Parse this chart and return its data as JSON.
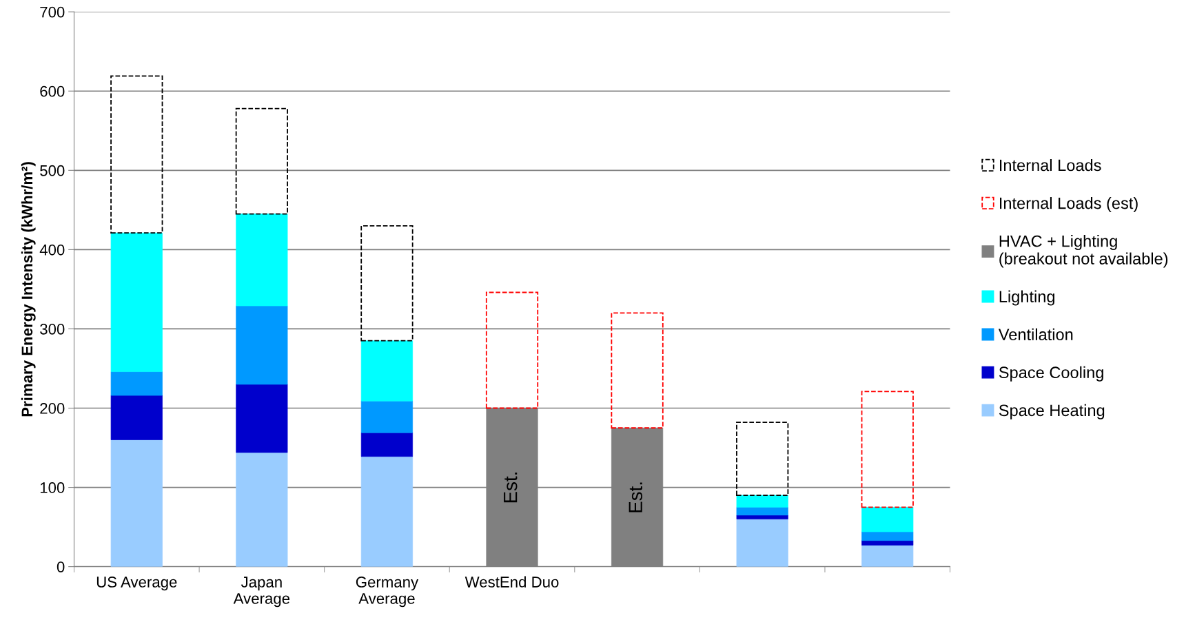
{
  "chart_data": {
    "type": "bar",
    "stacked": true,
    "categories": [
      "US Average",
      "Japan\nAverage",
      "Germany\nAverage",
      "WestEnd Duo",
      null,
      null,
      null
    ],
    "ylabel": "Primary Energy Intensity (kWhr/m²)",
    "ylim": [
      0,
      700
    ],
    "yticks": [
      0,
      100,
      200,
      300,
      400,
      500,
      600,
      700
    ],
    "grid": "y",
    "legend": "right",
    "series": [
      {
        "name": "Space Heating",
        "color": "#99ccff",
        "values": [
          160,
          144,
          139,
          null,
          null,
          60,
          27
        ]
      },
      {
        "name": "Space Cooling",
        "color": "#0000cc",
        "values": [
          56,
          86,
          30,
          null,
          null,
          5,
          6
        ]
      },
      {
        "name": "Ventilation",
        "color": "#0099ff",
        "values": [
          30,
          99,
          40,
          null,
          null,
          10,
          11
        ]
      },
      {
        "name": "Lighting",
        "color": "#00ffff",
        "values": [
          175,
          116,
          76,
          null,
          null,
          15,
          31
        ]
      },
      {
        "name": "HVAC + Lighting\n(breakout not available)",
        "color": "#808080",
        "values": [
          null,
          null,
          null,
          200,
          175,
          null,
          null
        ],
        "value_labels": [
          null,
          null,
          null,
          "Est.",
          "Est.",
          null,
          null
        ]
      },
      {
        "name": "Internal Loads (est)",
        "color": "#ff0000",
        "line_style": "dashed",
        "values": [
          null,
          null,
          null,
          146,
          145,
          null,
          146
        ]
      },
      {
        "name": "Internal Loads",
        "color": "#000000",
        "line_style": "dashed",
        "values": [
          198,
          133,
          145,
          null,
          null,
          92,
          null
        ]
      }
    ]
  }
}
